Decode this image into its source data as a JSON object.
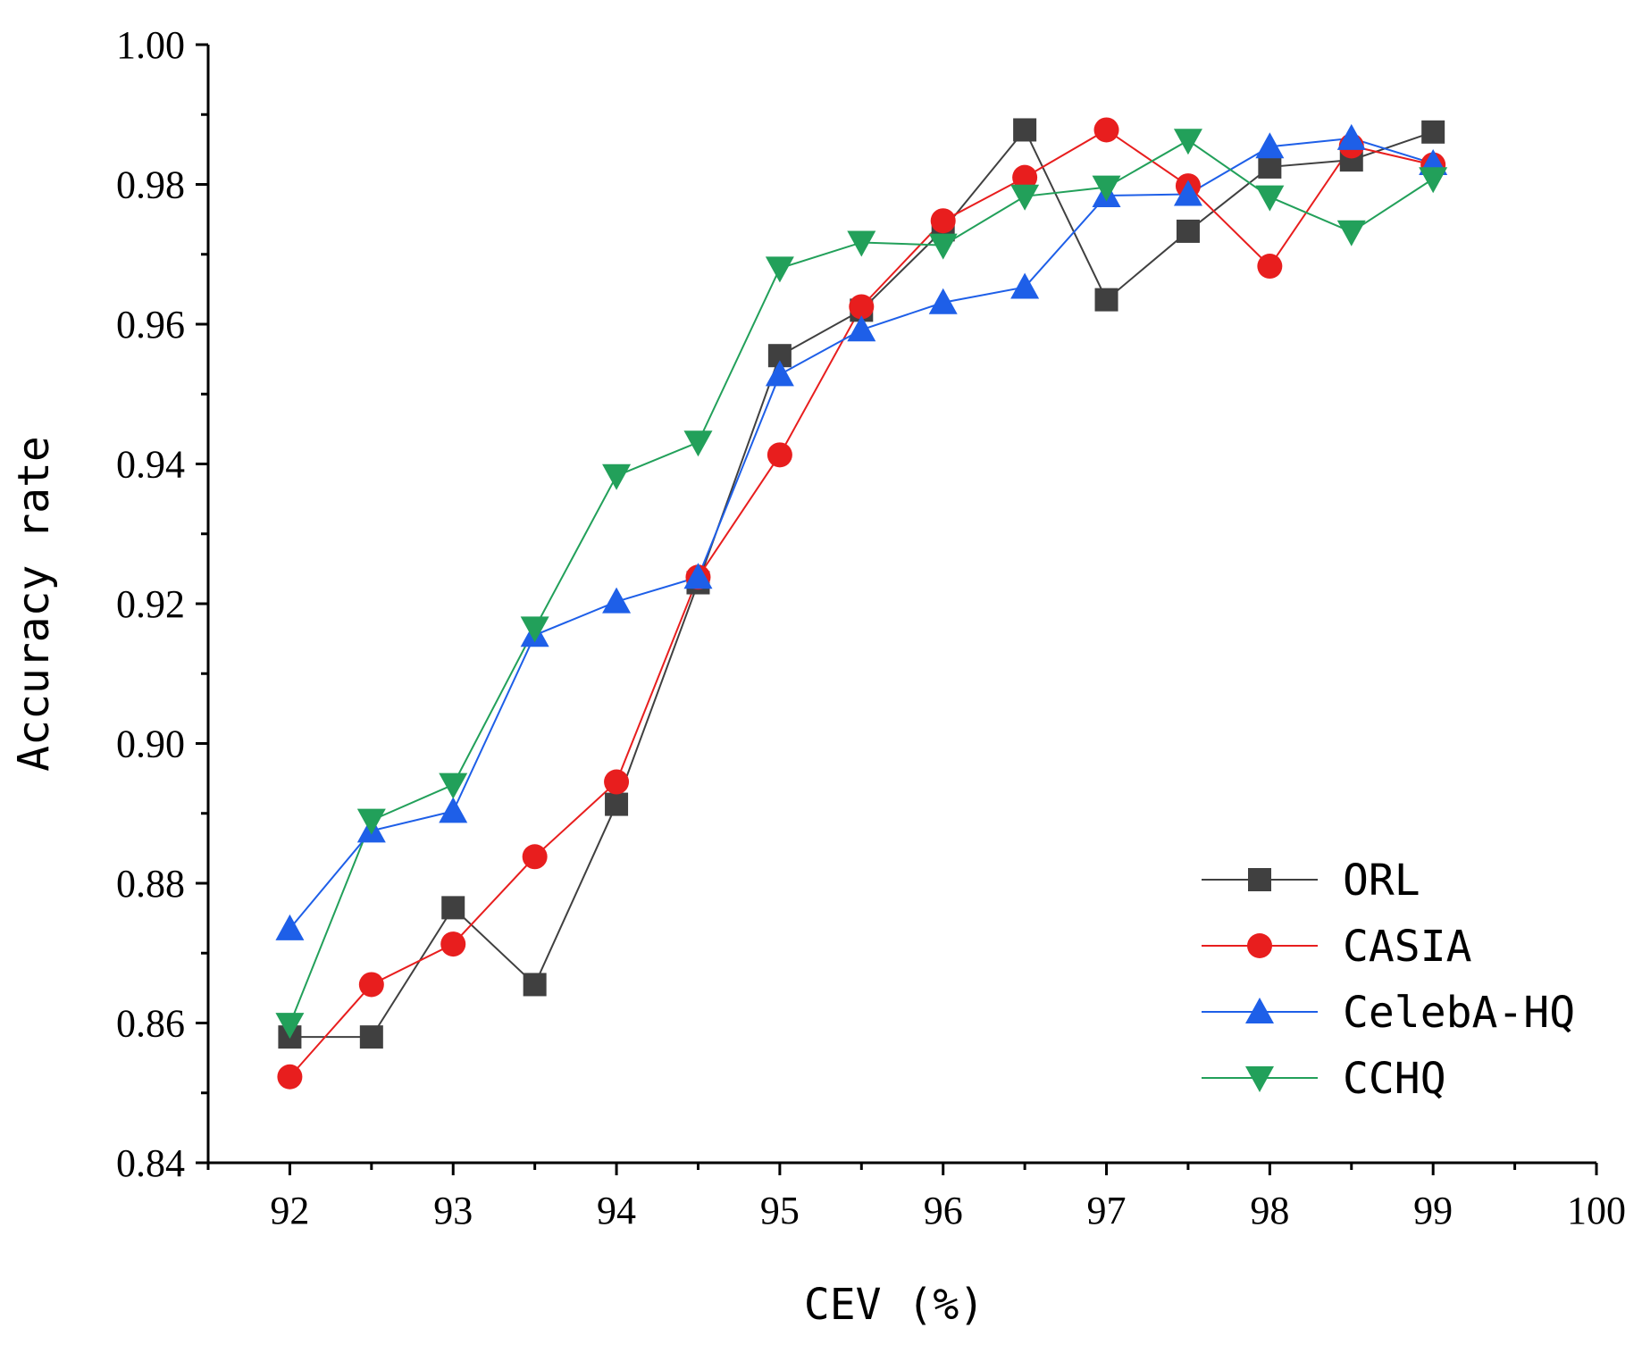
{
  "chart_data": {
    "type": "line",
    "xlabel": "CEV (%)",
    "ylabel": "Accuracy rate",
    "xlim": [
      91.5,
      100
    ],
    "ylim": [
      0.84,
      1.0
    ],
    "x_ticks": [
      "92",
      "93",
      "94",
      "95",
      "96",
      "97",
      "98",
      "99",
      "100"
    ],
    "y_ticks": [
      "0.84",
      "0.86",
      "0.88",
      "0.90",
      "0.92",
      "0.94",
      "0.96",
      "0.98",
      "1.00"
    ],
    "x_tick_values": [
      92,
      93,
      94,
      95,
      96,
      97,
      98,
      99,
      100
    ],
    "y_tick_values": [
      0.84,
      0.86,
      0.88,
      0.9,
      0.92,
      0.94,
      0.96,
      0.98,
      1.0
    ],
    "legend_position": "bottom-right",
    "grid": false,
    "x": [
      92,
      92.5,
      93,
      93.5,
      94,
      94.5,
      95,
      95.5,
      96,
      96.5,
      97,
      97.5,
      98,
      98.5,
      99
    ],
    "series": [
      {
        "name": "ORL",
        "color": "#404040",
        "marker": "square",
        "values": [
          0.858,
          0.858,
          0.8765,
          0.8655,
          0.8913,
          0.923,
          0.9555,
          0.962,
          0.9735,
          0.9878,
          0.9635,
          0.9733,
          0.9825,
          0.9835,
          0.9875
        ]
      },
      {
        "name": "CASIA",
        "color": "#e81e1e",
        "marker": "circle",
        "values": [
          0.8523,
          0.8655,
          0.8713,
          0.8838,
          0.8945,
          0.9238,
          0.9413,
          0.9625,
          0.9748,
          0.981,
          0.9878,
          0.9798,
          0.9683,
          0.9855,
          0.9828
        ]
      },
      {
        "name": "CelebA-HQ",
        "color": "#1e5fe8",
        "marker": "triangle-up",
        "values": [
          0.8735,
          0.8875,
          0.8903,
          0.9155,
          0.9203,
          0.9238,
          0.9528,
          0.9592,
          0.9631,
          0.9653,
          0.9784,
          0.9786,
          0.9854,
          0.9866,
          0.983
        ]
      },
      {
        "name": "CCHQ",
        "color": "#22a05a",
        "marker": "triangle-down",
        "values": [
          0.8598,
          0.889,
          0.8941,
          0.9165,
          0.9383,
          0.9431,
          0.968,
          0.9717,
          0.9713,
          0.9783,
          0.9796,
          0.9863,
          0.9782,
          0.9732,
          0.9808
        ]
      }
    ]
  }
}
